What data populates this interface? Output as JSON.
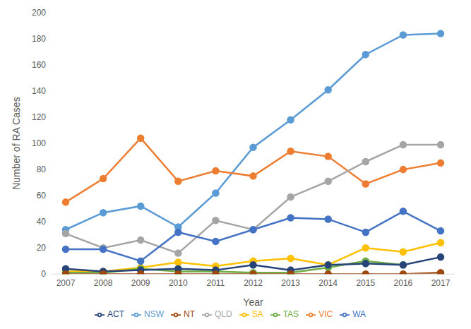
{
  "chart_data": {
    "type": "line",
    "x_label": "Year",
    "y_label": "Number of RA Cases",
    "categories": [
      "2007",
      "2008",
      "2009",
      "2010",
      "2011",
      "2012",
      "2013",
      "2014",
      "2015",
      "2016",
      "2017"
    ],
    "series": [
      {
        "name": "NSW",
        "color": "#5b9bd5",
        "values": [
          34,
          47,
          52,
          36,
          62,
          97,
          118,
          141,
          168,
          183,
          184
        ]
      },
      {
        "name": "VIC",
        "color": "#ed7d31",
        "values": [
          55,
          73,
          104,
          71,
          79,
          75,
          94,
          90,
          69,
          80,
          85
        ]
      },
      {
        "name": "QLD",
        "color": "#a5a5a5",
        "values": [
          31,
          20,
          26,
          16,
          41,
          34,
          59,
          71,
          86,
          99,
          99
        ]
      },
      {
        "name": "SA",
        "color": "#ffc000",
        "values": [
          2,
          2,
          5,
          9,
          6,
          10,
          12,
          7,
          20,
          17,
          24
        ]
      },
      {
        "name": "WA",
        "color": "#4472c4",
        "values": [
          19,
          19,
          10,
          32,
          25,
          34,
          43,
          42,
          32,
          48,
          33
        ]
      },
      {
        "name": "TAS",
        "color": "#70ad47",
        "values": [
          1,
          1,
          4,
          2,
          2,
          1,
          1,
          5,
          10,
          7,
          null
        ]
      },
      {
        "name": "ACT",
        "color": "#264478",
        "values": [
          4,
          2,
          3,
          4,
          3,
          7,
          3,
          7,
          8,
          7,
          13
        ]
      },
      {
        "name": "NT",
        "color": "#9e480e",
        "values": [
          0,
          0,
          0,
          0,
          0,
          0,
          0,
          0,
          0,
          0,
          1
        ]
      }
    ],
    "ylim": [
      0,
      200
    ],
    "yticks": [
      0,
      20,
      40,
      60,
      80,
      100,
      120,
      140,
      160,
      180,
      200
    ],
    "grid": false,
    "legend": "bottom",
    "marker": "circle"
  }
}
